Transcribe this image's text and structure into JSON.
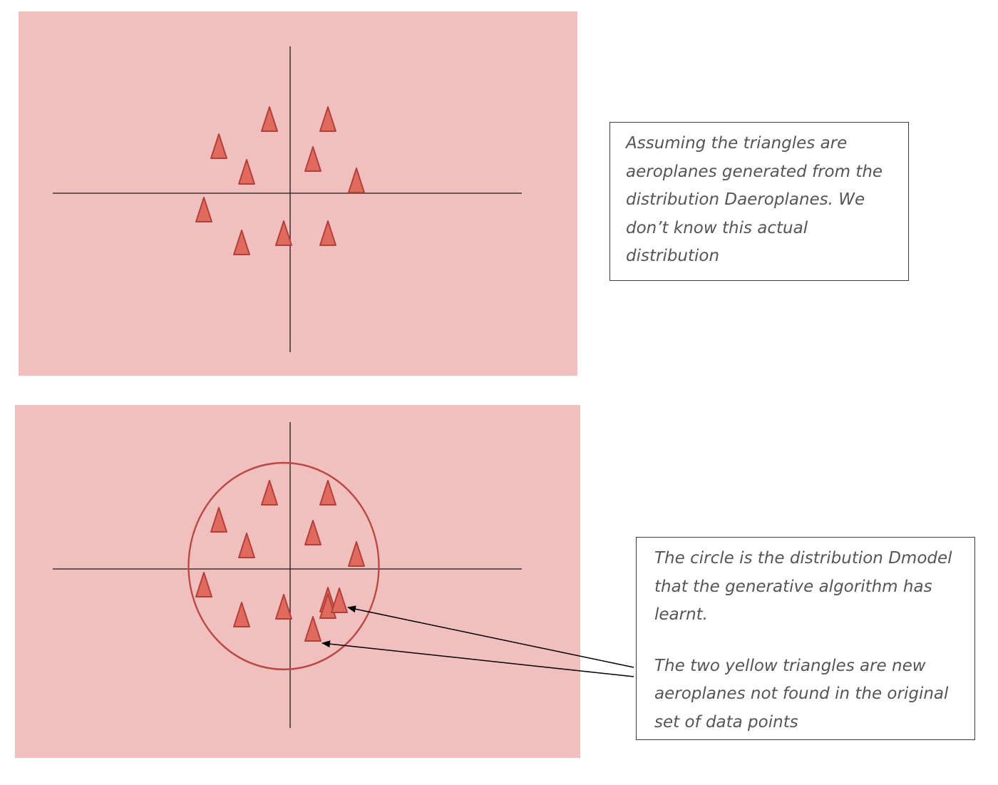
{
  "top_note": {
    "text": "Assuming the triangles are aeroplanes generated from the distribution Daeroplanes. We don’t know this actual distribution"
  },
  "bottom_note": {
    "text_1": "The circle is the distribution Dmodel that the generative algorithm has learnt.",
    "text_2": "The two yellow triangles are new aeroplanes not found in the original set of data points"
  },
  "colors": {
    "panel_background": "#f2bfbf",
    "triangle_fill": "#e06a5e",
    "triangle_stroke": "#b2403a",
    "circle_stroke": "#b84a45",
    "axis": "#1a1a1a"
  },
  "icons": {
    "data_point": "triangle-icon",
    "new_point": "triangle-icon",
    "model_distribution": "circle-outline"
  }
}
